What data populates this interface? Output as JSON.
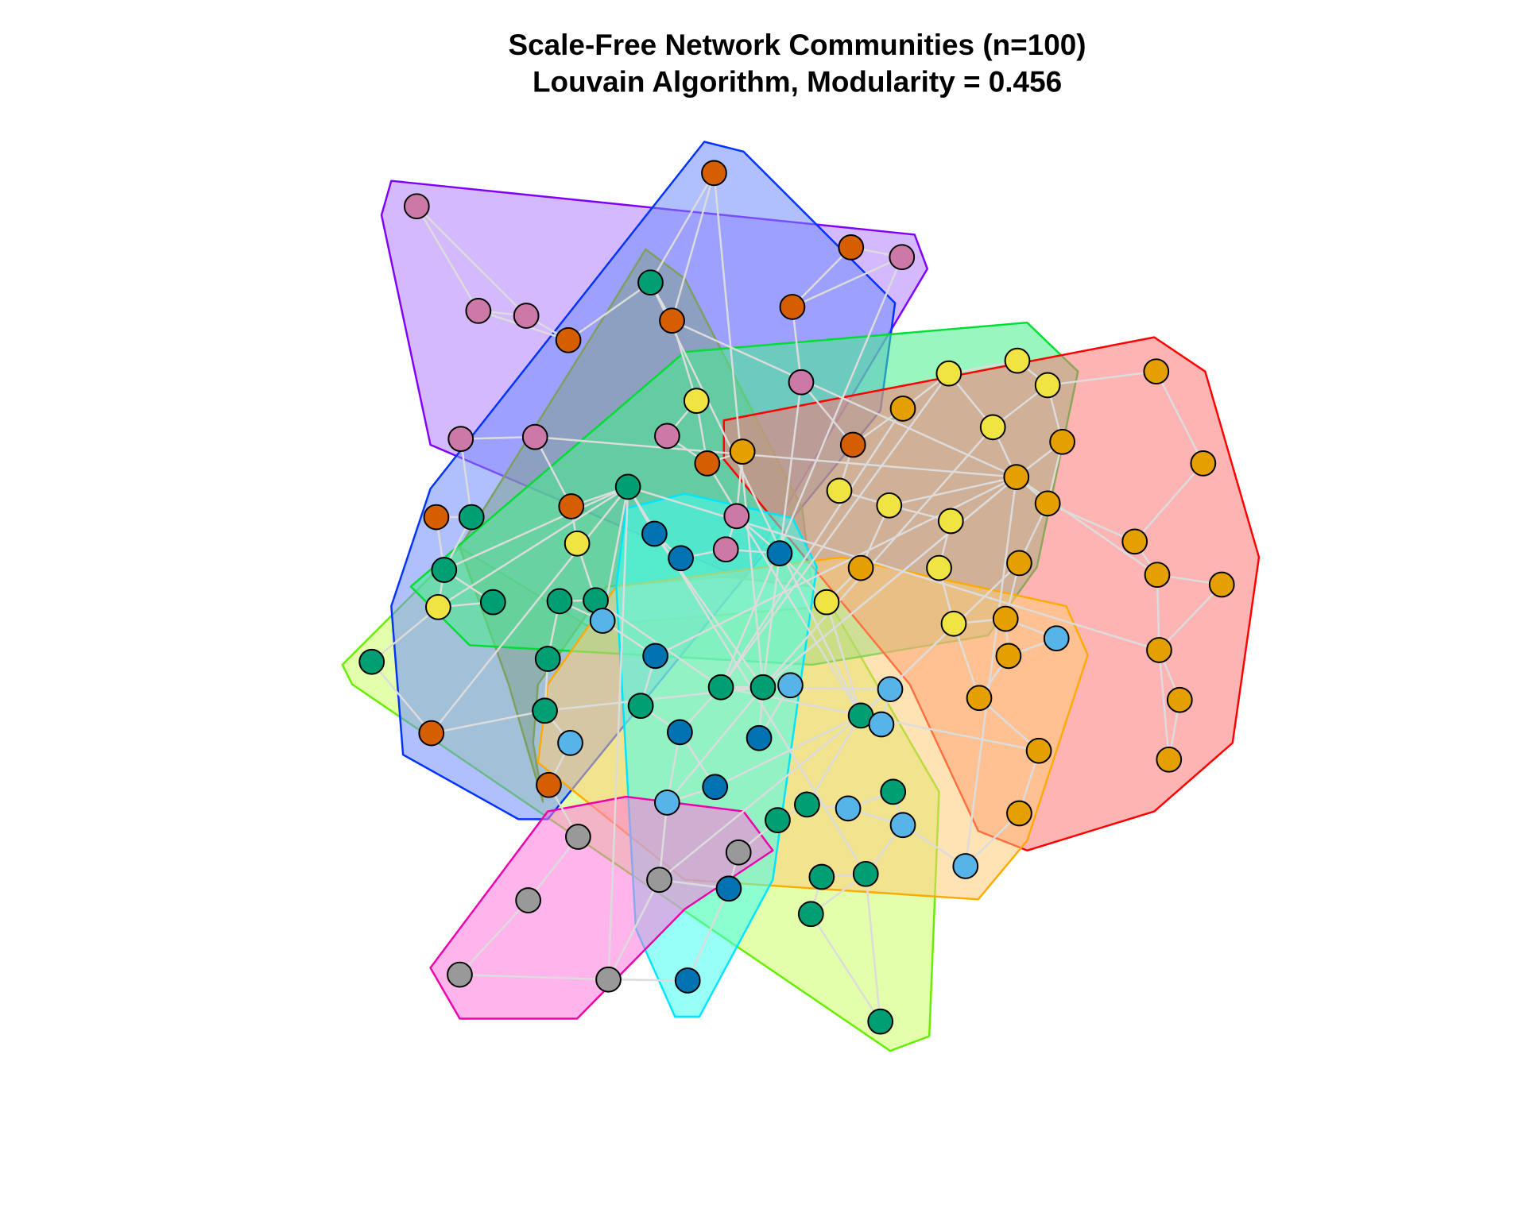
{
  "title": "Scale-Free Network Communities (n=100)",
  "subtitle": "Louvain Algorithm, Modularity = 0.456"
}
